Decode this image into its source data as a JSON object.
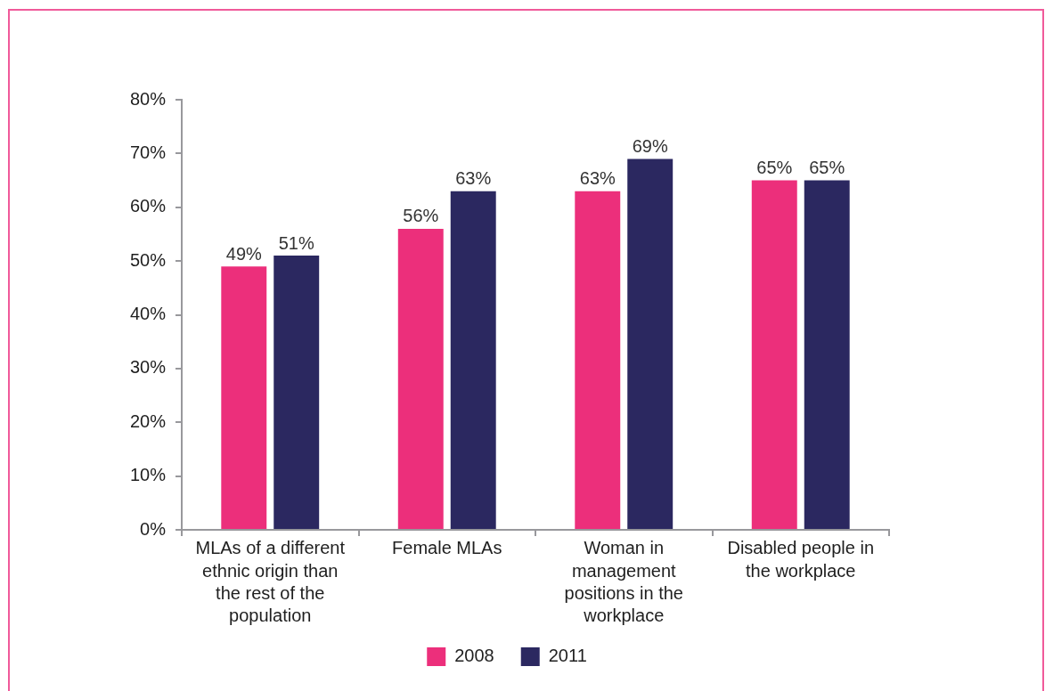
{
  "chart_data": {
    "type": "bar",
    "categories": [
      "MLAs of a different ethnic origin than the rest of the population",
      "Female MLAs",
      "Woman in management positions in the workplace",
      "Disabled people in the workplace"
    ],
    "series": [
      {
        "name": "2008",
        "color": "#ec2f7b",
        "values": [
          49,
          56,
          63,
          65
        ],
        "value_labels": [
          "49%",
          "56%",
          "63%",
          "65%"
        ]
      },
      {
        "name": "2011",
        "color": "#2b2860",
        "values": [
          51,
          63,
          69,
          65
        ],
        "value_labels": [
          "51%",
          "63%",
          "69%",
          "65%"
        ]
      }
    ],
    "ylim": [
      0,
      80
    ],
    "yticks": [
      {
        "value": 0,
        "label": "0%"
      },
      {
        "value": 10,
        "label": "10%"
      },
      {
        "value": 20,
        "label": "20%"
      },
      {
        "value": 30,
        "label": "30%"
      },
      {
        "value": 40,
        "label": "40%"
      },
      {
        "value": 50,
        "label": "50%"
      },
      {
        "value": 60,
        "label": "60%"
      },
      {
        "value": 70,
        "label": "70%"
      },
      {
        "value": 80,
        "label": "80%"
      }
    ],
    "grid": false,
    "legend": "bottom"
  }
}
